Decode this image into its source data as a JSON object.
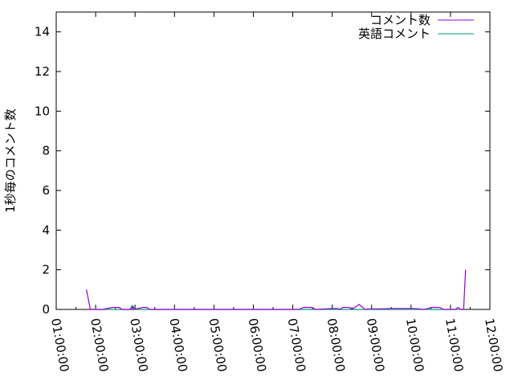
{
  "chart_data": {
    "type": "line",
    "title": "",
    "xlabel": "",
    "ylabel": "1秒毎のコメント数",
    "xlim": [
      "01:00:00",
      "12:00:00"
    ],
    "ylim": [
      0,
      15
    ],
    "x_ticks": [
      "01:00:00",
      "02:00:00",
      "03:00:00",
      "04:00:00",
      "05:00:00",
      "06:00:00",
      "07:00:00",
      "08:00:00",
      "09:00:00",
      "10:00:00",
      "11:00:00",
      "12:00:00"
    ],
    "y_ticks": [
      "0",
      "2",
      "4",
      "6",
      "8",
      "10",
      "12",
      "14"
    ],
    "grid": false,
    "legend_position": "top-right",
    "series": [
      {
        "name": "コメント数",
        "color": "#9400d3",
        "points": [
          [
            "01:46:00",
            1
          ],
          [
            "01:52:00",
            0
          ],
          [
            "02:10:00",
            0
          ],
          [
            "02:26:00",
            0.1
          ],
          [
            "02:36:00",
            0.1
          ],
          [
            "02:40:00",
            0
          ],
          [
            "02:54:00",
            0
          ],
          [
            "02:56:00",
            0.15
          ],
          [
            "02:58:00",
            0
          ],
          [
            "03:12:00",
            0.1
          ],
          [
            "03:18:00",
            0.1
          ],
          [
            "03:22:00",
            0
          ],
          [
            "05:00:00",
            0
          ],
          [
            "07:10:00",
            0
          ],
          [
            "07:16:00",
            0.1
          ],
          [
            "07:29:00",
            0.1
          ],
          [
            "07:35:00",
            0
          ],
          [
            "08:00:00",
            0.05
          ],
          [
            "08:08:00",
            0.05
          ],
          [
            "08:12:00",
            0
          ],
          [
            "08:16:00",
            0.1
          ],
          [
            "08:26:00",
            0.1
          ],
          [
            "08:30:00",
            0
          ],
          [
            "08:41:00",
            0.25
          ],
          [
            "08:50:00",
            0
          ],
          [
            "08:56:00",
            0.03
          ],
          [
            "09:11:00",
            0.03
          ],
          [
            "09:31:00",
            0.05
          ],
          [
            "10:04:00",
            0.05
          ],
          [
            "10:20:00",
            0
          ],
          [
            "10:32:00",
            0.1
          ],
          [
            "10:43:00",
            0.1
          ],
          [
            "10:50:00",
            0
          ],
          [
            "11:08:00",
            0
          ],
          [
            "11:11:00",
            0.1
          ],
          [
            "11:16:00",
            0
          ],
          [
            "11:20:00",
            0
          ],
          [
            "11:23:00",
            2
          ]
        ]
      },
      {
        "name": "英語コメント",
        "color": "#009e73",
        "points": [
          [
            "01:52:00",
            0
          ],
          [
            "02:52:00",
            0
          ],
          [
            "02:56:00",
            0.2
          ],
          [
            "03:00:00",
            0
          ],
          [
            "05:00:00",
            0
          ],
          [
            "08:00:00",
            0
          ],
          [
            "10:00:00",
            0
          ],
          [
            "11:20:00",
            0
          ]
        ]
      }
    ]
  }
}
